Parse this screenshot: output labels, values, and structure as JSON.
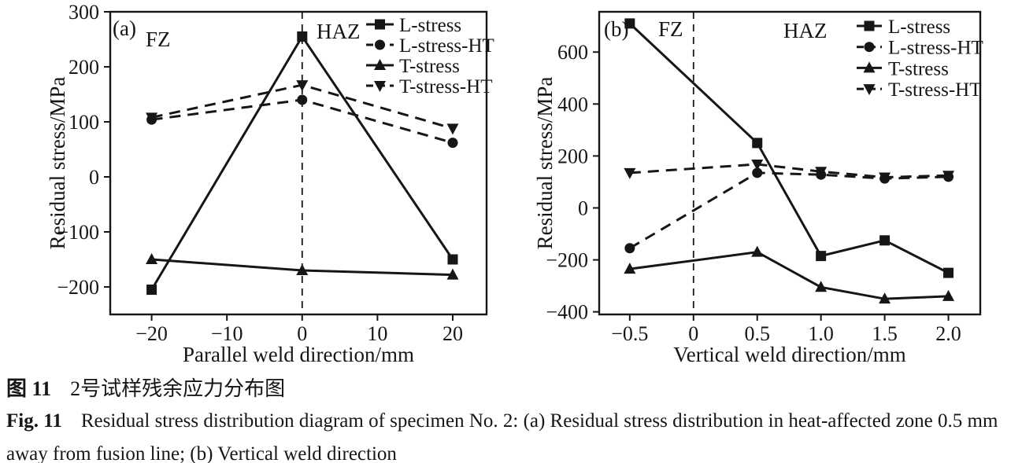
{
  "figure": {
    "caption_zh_label": "图 11",
    "caption_zh_text": "2号试样残余应力分布图",
    "caption_en_label": "Fig. 11",
    "caption_en_line1": "Residual stress distribution diagram of specimen No. 2: (a) Residual stress distribution in heat-affected zone 0.5 mm",
    "caption_en_line2": "away from fusion line; (b) Vertical weld direction"
  },
  "colors": {
    "line": "#161616",
    "text": "#161616",
    "background": "#ffffff"
  },
  "chart_data": [
    {
      "id": "a",
      "type": "line",
      "panel_label": "(a)",
      "xlabel": "Parallel weld direction/mm",
      "ylabel": "Residual stress/MPa",
      "xlim": [
        -25.5,
        24.5
      ],
      "ylim": [
        -250,
        300
      ],
      "xticks": {
        "values": [
          -20,
          -10,
          0,
          10,
          20
        ],
        "labels": [
          "−20",
          "−10",
          "0",
          "10",
          "20"
        ]
      },
      "yticks": {
        "values": [
          300,
          200,
          100,
          0,
          -100,
          -200
        ],
        "labels": [
          "300",
          "200",
          "100",
          "0",
          "−100",
          "−200"
        ]
      },
      "x": [
        -20,
        0,
        20
      ],
      "series": [
        {
          "name": "L-stress",
          "marker": "square",
          "dash": "solid",
          "values": [
            -205,
            255,
            -150
          ]
        },
        {
          "name": "L-stress-HT",
          "marker": "circle",
          "dash": "dashed",
          "values": [
            104,
            140,
            62
          ]
        },
        {
          "name": "T-stress",
          "marker": "triangle-up",
          "dash": "solid",
          "values": [
            -150,
            -170,
            -178
          ]
        },
        {
          "name": "T-stress-HT",
          "marker": "triangle-down",
          "dash": "dashed",
          "values": [
            108,
            167,
            88
          ]
        }
      ],
      "vline_x": 0,
      "legend_position": "top-right",
      "annotations": [
        {
          "text": "(a)",
          "x": 143,
          "y": 45
        },
        {
          "text": "FZ",
          "x": 185,
          "y": 59
        },
        {
          "text": "HAZ",
          "x": 402,
          "y": 49
        }
      ]
    },
    {
      "id": "b",
      "type": "line",
      "panel_label": "(b)",
      "xlabel": "Vertical weld direction/mm",
      "ylabel": "Residual stress/MPa",
      "xlim": [
        -0.74,
        2.25
      ],
      "ylim": [
        -410,
        755
      ],
      "xticks": {
        "values": [
          -0.5,
          0,
          0.5,
          1.0,
          1.5,
          2.0
        ],
        "labels": [
          "−0.5",
          "0",
          "0.5",
          "1.0",
          "1.5",
          "2.0"
        ]
      },
      "yticks": {
        "values": [
          600,
          400,
          200,
          0,
          -200,
          -400
        ],
        "labels": [
          "600",
          "400",
          "200",
          "0",
          "−200",
          "−400"
        ]
      },
      "x": [
        -0.5,
        0.5,
        1.0,
        1.5,
        2.0
      ],
      "series": [
        {
          "name": "L-stress",
          "marker": "square",
          "dash": "solid",
          "values": [
            710,
            250,
            -185,
            -125,
            -250
          ]
        },
        {
          "name": "L-stress-HT",
          "marker": "circle",
          "dash": "dashed",
          "values": [
            -155,
            135,
            128,
            113,
            120
          ]
        },
        {
          "name": "T-stress",
          "marker": "triangle-up",
          "dash": "solid",
          "values": [
            -235,
            -170,
            -305,
            -350,
            -340
          ]
        },
        {
          "name": "T-stress-HT",
          "marker": "triangle-down",
          "dash": "dashed",
          "values": [
            135,
            168,
            140,
            118,
            125
          ]
        }
      ],
      "vline_x": 0,
      "legend_position": "top-right",
      "annotations": [
        {
          "text": "(b)",
          "x": 118,
          "y": 46
        },
        {
          "text": "FZ",
          "x": 187,
          "y": 46
        },
        {
          "text": "HAZ",
          "x": 346,
          "y": 48
        }
      ]
    }
  ]
}
